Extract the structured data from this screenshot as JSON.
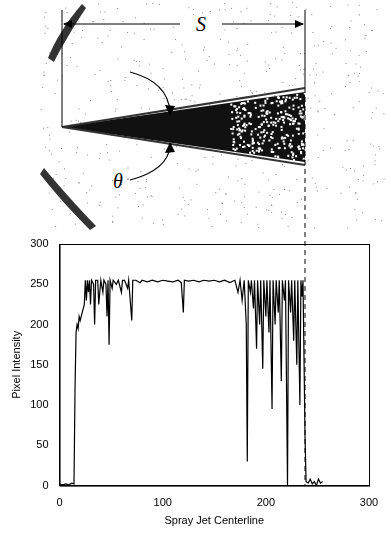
{
  "diagram": {
    "span_label": "S",
    "angle_label": "θ"
  },
  "chart_data": {
    "type": "line",
    "xlabel": "Spray Jet Centerline",
    "ylabel": "Pixel Intensity",
    "x": [
      0,
      3,
      6,
      9,
      12,
      14,
      15,
      16,
      17,
      18,
      19,
      20,
      22,
      24,
      25,
      26,
      27,
      28,
      29,
      30,
      31,
      33,
      34,
      35,
      37,
      38,
      40,
      42,
      43,
      45,
      46,
      47,
      48,
      49,
      51,
      52,
      55,
      57,
      60,
      61,
      63,
      66,
      67,
      70,
      71,
      74,
      78,
      80,
      85,
      90,
      95,
      100,
      105,
      110,
      115,
      118,
      120,
      121,
      125,
      130,
      135,
      140,
      145,
      150,
      155,
      160,
      165,
      170,
      173,
      175,
      177,
      179,
      181,
      182,
      183,
      185,
      186,
      188,
      189,
      191,
      192,
      194,
      195,
      197,
      198,
      200,
      201,
      203,
      204,
      206,
      207,
      209,
      210,
      212,
      213,
      215,
      216,
      218,
      219,
      221,
      222,
      224,
      225,
      227,
      228,
      230,
      231,
      233,
      234,
      235,
      236,
      238,
      239,
      241,
      243,
      245,
      247,
      249,
      251,
      253,
      255
    ],
    "values": [
      2,
      1,
      2,
      1,
      3,
      2,
      120,
      190,
      200,
      195,
      210,
      205,
      215,
      225,
      255,
      230,
      255,
      240,
      255,
      225,
      255,
      250,
      200,
      255,
      255,
      225,
      255,
      240,
      255,
      250,
      210,
      255,
      175,
      255,
      245,
      255,
      250,
      255,
      240,
      255,
      255,
      245,
      255,
      205,
      255,
      255,
      252,
      255,
      253,
      255,
      253,
      255,
      254,
      253,
      255,
      252,
      215,
      255,
      254,
      255,
      253,
      255,
      254,
      255,
      253,
      255,
      252,
      255,
      240,
      255,
      230,
      255,
      200,
      30,
      255,
      240,
      255,
      220,
      255,
      170,
      255,
      200,
      255,
      145,
      255,
      210,
      255,
      190,
      255,
      95,
      255,
      200,
      255,
      215,
      255,
      130,
      255,
      230,
      255,
      0,
      255,
      215,
      255,
      180,
      255,
      150,
      255,
      100,
      255,
      235,
      255,
      60,
      5,
      3,
      8,
      2,
      5,
      0,
      8,
      3,
      5
    ],
    "color": "#000000",
    "line_style": "solid",
    "xlim": [
      0,
      300
    ],
    "xticks": [
      0,
      100,
      200,
      300
    ],
    "ylim": [
      0,
      300
    ],
    "yticks": [
      0,
      50,
      100,
      150,
      200,
      250,
      300
    ],
    "grid": false
  }
}
